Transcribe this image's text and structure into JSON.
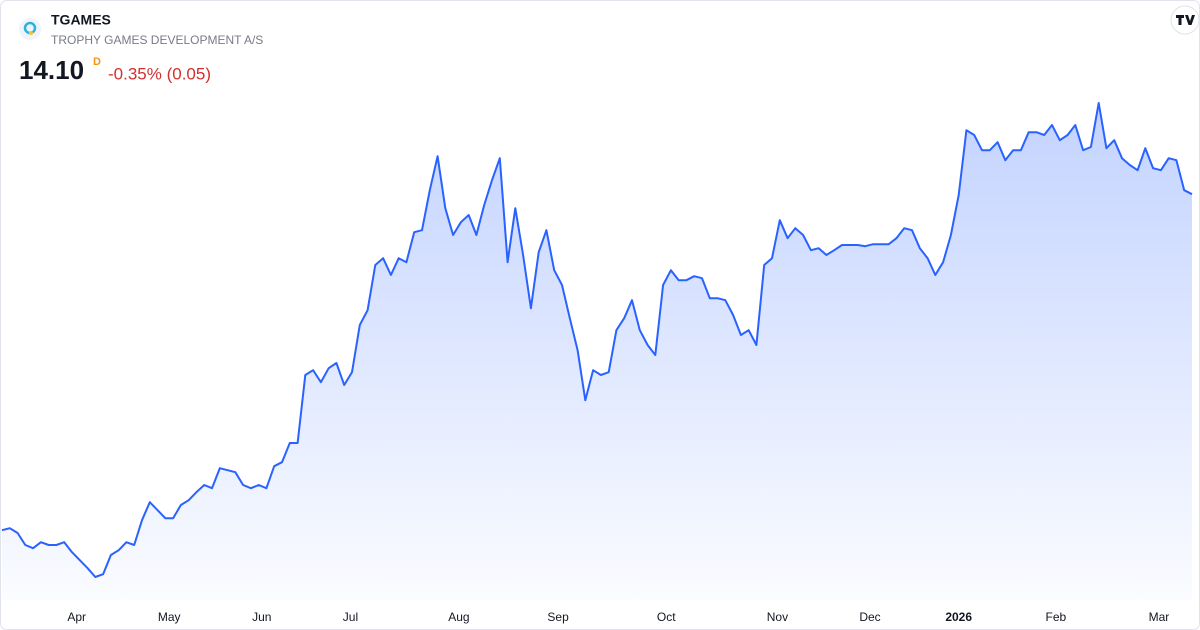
{
  "header": {
    "symbol": "TGAMES",
    "name": "TROPHY GAMES DEVELOPMENT A/S",
    "price": "14.10",
    "interval": "D",
    "change": "-0.35% (0.05)"
  },
  "chart_data": {
    "type": "area",
    "color": "#2962ff",
    "values": [
      5.7,
      5.75,
      5.63,
      5.33,
      5.25,
      5.4,
      5.33,
      5.33,
      5.4,
      5.15,
      4.95,
      4.75,
      4.53,
      4.6,
      5.08,
      5.2,
      5.4,
      5.33,
      5.95,
      6.4,
      6.2,
      6.0,
      6.0,
      6.33,
      6.45,
      6.65,
      6.83,
      6.75,
      7.25,
      7.2,
      7.15,
      6.83,
      6.75,
      6.83,
      6.75,
      7.3,
      7.4,
      7.88,
      7.88,
      9.58,
      9.7,
      9.4,
      9.75,
      9.88,
      9.33,
      9.65,
      10.83,
      11.2,
      12.33,
      12.5,
      12.08,
      12.5,
      12.4,
      13.15,
      13.2,
      14.2,
      15.05,
      13.75,
      13.08,
      13.4,
      13.58,
      13.08,
      13.83,
      14.45,
      15.0,
      12.4,
      13.75,
      12.58,
      11.25,
      12.65,
      13.2,
      12.2,
      11.83,
      11.0,
      10.2,
      8.95,
      9.7,
      9.58,
      9.65,
      10.7,
      11.0,
      11.45,
      10.7,
      10.33,
      10.08,
      11.83,
      12.2,
      11.95,
      11.95,
      12.05,
      12.0,
      11.5,
      11.5,
      11.45,
      11.08,
      10.58,
      10.7,
      10.33,
      12.33,
      12.5,
      13.45,
      13.0,
      13.25,
      13.08,
      12.7,
      12.75,
      12.58,
      12.7,
      12.83,
      12.83,
      12.83,
      12.8,
      12.85,
      12.85,
      12.85,
      13.0,
      13.25,
      13.2,
      12.75,
      12.5,
      12.08,
      12.4,
      13.08,
      14.08,
      15.7,
      15.58,
      15.2,
      15.2,
      15.4,
      14.95,
      15.2,
      15.2,
      15.65,
      15.65,
      15.58,
      15.83,
      15.45,
      15.58,
      15.83,
      15.2,
      15.28,
      16.38,
      15.25,
      15.45,
      15.0,
      14.83,
      14.7,
      15.25,
      14.75,
      14.7,
      15.0,
      14.95,
      14.2,
      14.1
    ],
    "xticks": [
      {
        "value": 9.6,
        "label": "Apr"
      },
      {
        "value": 21.5,
        "label": "May"
      },
      {
        "value": 33.4,
        "label": "Jun"
      },
      {
        "value": 44.8,
        "label": "Jul"
      },
      {
        "value": 58.75,
        "label": "Aug"
      },
      {
        "value": 71.5,
        "label": "Sep"
      },
      {
        "value": 85.4,
        "label": "Oct"
      },
      {
        "value": 99.7,
        "label": "Nov"
      },
      {
        "value": 111.6,
        "label": "Dec"
      },
      {
        "value": 123,
        "label": "2026"
      },
      {
        "value": 135.5,
        "label": "Feb"
      },
      {
        "value": 148.75,
        "label": "Mar"
      }
    ]
  }
}
